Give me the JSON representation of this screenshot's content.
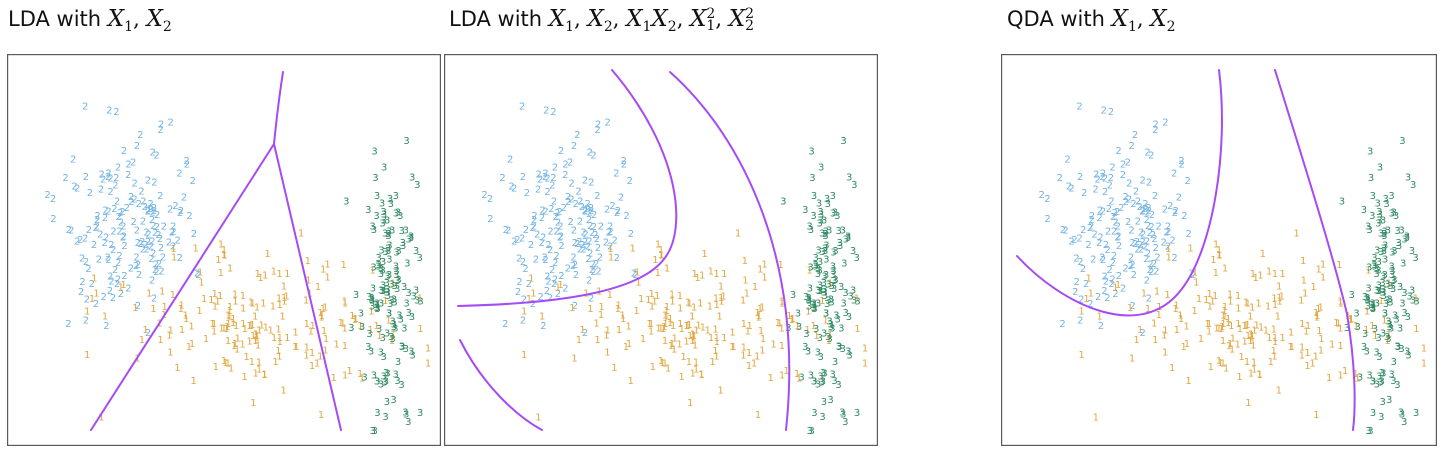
{
  "panels": [
    {
      "title_prefix": "LDA with ",
      "title_terms": [
        "X1",
        "X2"
      ]
    },
    {
      "title_prefix": "LDA with ",
      "title_terms": [
        "X1",
        "X2",
        "X1X2",
        "X1^2",
        "X2^2"
      ]
    },
    {
      "title_prefix": "QDA with ",
      "title_terms": [
        "X1",
        "X2"
      ]
    }
  ],
  "colors": {
    "class_1": "#e0a743",
    "class_2": "#73b3e3",
    "class_3": "#2f8a63",
    "boundary": "#a64bf4",
    "frame": "#5a5a5a"
  },
  "chart_data": {
    "type": "scatter",
    "axes_shown": false,
    "grid": false,
    "class_labels": [
      "1",
      "2",
      "3"
    ],
    "panels_sharing_points": 3,
    "series": [
      {
        "label": "2",
        "color": "#73b3e3",
        "n": 170,
        "center": [
          0.28,
          0.45
        ],
        "spread": [
          0.075,
          0.12
        ]
      },
      {
        "label": "1",
        "color": "#e0a743",
        "n": 200,
        "center": [
          0.58,
          0.69
        ],
        "spread": [
          0.17,
          0.085
        ]
      },
      {
        "label": "3",
        "color": "#2f8a63",
        "n": 150,
        "center": [
          0.88,
          0.63
        ],
        "spread": [
          0.032,
          0.17
        ]
      }
    ],
    "boundaries": [
      {
        "panel": 0,
        "kind": "linear",
        "lines": [
          [
            [
              0.63,
              0.05
            ],
            [
              0.61,
              0.26
            ]
          ],
          [
            [
              0.61,
              0.26
            ],
            [
              0.18,
              0.97
            ]
          ],
          [
            [
              0.61,
              0.26
            ],
            [
              0.74,
              0.97
            ]
          ]
        ]
      },
      {
        "panel": 1,
        "kind": "quadratic-features"
      },
      {
        "panel": 2,
        "kind": "quadratic"
      }
    ]
  }
}
